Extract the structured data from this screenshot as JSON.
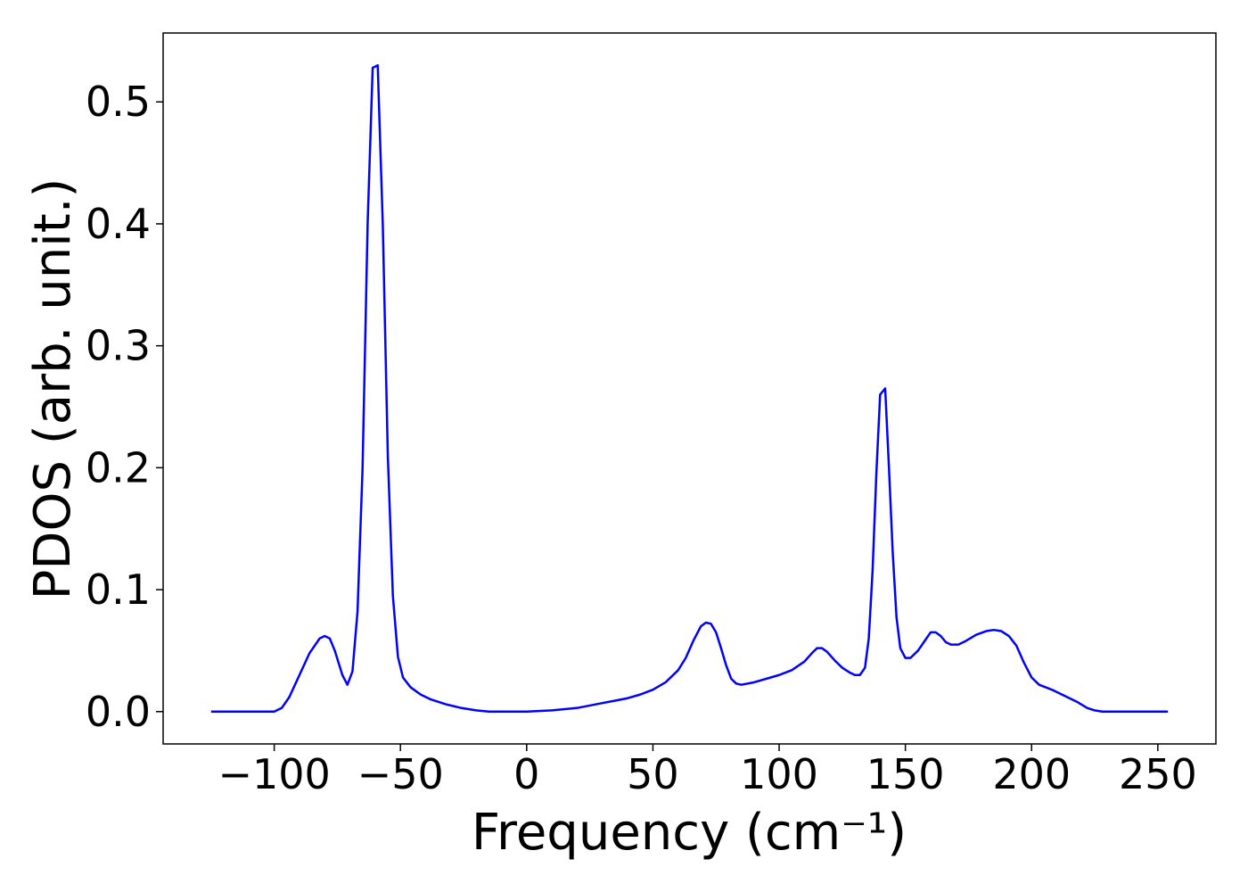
{
  "chart_data": {
    "type": "line",
    "xlabel": "Frequency (cm⁻¹)",
    "ylabel": "PDOS (arb. unit.)",
    "x": [
      -125,
      -100,
      -97,
      -94,
      -90,
      -86,
      -82,
      -80,
      -78,
      -76,
      -73,
      -71,
      -69,
      -67,
      -65,
      -63,
      -61,
      -59,
      -57,
      -55,
      -53,
      -51,
      -49,
      -46,
      -42,
      -38,
      -32,
      -26,
      -20,
      -15,
      0,
      10,
      20,
      25,
      30,
      35,
      40,
      45,
      50,
      55,
      60,
      63,
      66,
      69,
      71,
      73,
      75,
      77,
      79,
      81,
      83,
      85,
      90,
      95,
      100,
      105,
      110,
      113,
      115,
      117,
      119,
      122,
      125,
      128,
      130,
      132,
      134,
      135.5,
      137,
      138.5,
      140,
      142,
      143.5,
      145,
      146.5,
      148,
      150,
      152,
      155,
      158,
      160,
      162,
      164,
      166,
      168,
      171,
      174,
      178,
      182,
      185,
      188,
      191,
      194,
      197,
      200,
      203,
      208,
      213,
      218,
      222,
      225,
      228,
      254
    ],
    "series": [
      {
        "name": "PDOS",
        "color": "#0000ff",
        "values": [
          0,
          0,
          0.003,
          0.012,
          0.03,
          0.048,
          0.06,
          0.062,
          0.06,
          0.05,
          0.03,
          0.022,
          0.033,
          0.082,
          0.2,
          0.4,
          0.528,
          0.53,
          0.4,
          0.21,
          0.095,
          0.045,
          0.028,
          0.02,
          0.014,
          0.01,
          0.006,
          0.003,
          0.001,
          0,
          0,
          0.001,
          0.003,
          0.005,
          0.007,
          0.009,
          0.011,
          0.014,
          0.018,
          0.024,
          0.034,
          0.044,
          0.058,
          0.07,
          0.073,
          0.072,
          0.065,
          0.052,
          0.038,
          0.027,
          0.023,
          0.022,
          0.024,
          0.027,
          0.03,
          0.034,
          0.041,
          0.048,
          0.052,
          0.052,
          0.049,
          0.042,
          0.036,
          0.032,
          0.03,
          0.03,
          0.036,
          0.06,
          0.115,
          0.195,
          0.26,
          0.265,
          0.2,
          0.13,
          0.077,
          0.052,
          0.044,
          0.044,
          0.05,
          0.059,
          0.065,
          0.065,
          0.062,
          0.057,
          0.055,
          0.055,
          0.058,
          0.063,
          0.066,
          0.067,
          0.066,
          0.062,
          0.054,
          0.04,
          0.028,
          0.022,
          0.018,
          0.013,
          0.008,
          0.003,
          0.001,
          0,
          0
        ]
      }
    ],
    "xlim": [
      -144,
      273
    ],
    "ylim": [
      -0.0265,
      0.5565
    ],
    "xticks": [
      {
        "value": -100,
        "label": "−100"
      },
      {
        "value": -50,
        "label": "−50"
      },
      0,
      50,
      100,
      150,
      200,
      250
    ],
    "yticks": [
      {
        "value": 0,
        "label": "0.0"
      },
      0.1,
      0.2,
      0.3,
      0.4,
      0.5
    ]
  }
}
